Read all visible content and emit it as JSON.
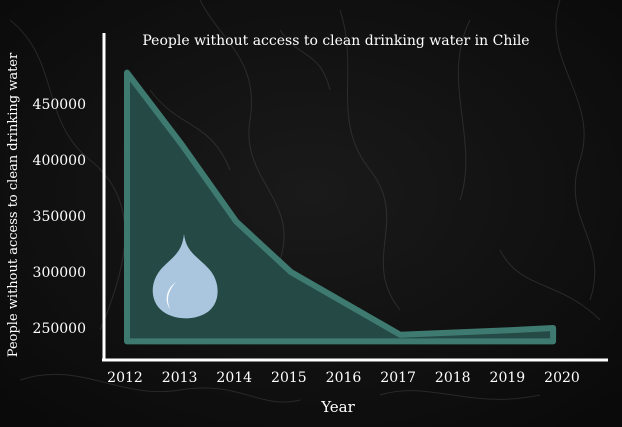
{
  "chart_data": {
    "type": "area",
    "title": "People without access to clean drinking water in Chile",
    "xlabel": "Year",
    "ylabel": "People without access to clean drinking water",
    "x": [
      2012,
      2013,
      2014,
      2015,
      2016,
      2017,
      2018,
      2019,
      2020
    ],
    "x_tick_labels": [
      "2012",
      "2013",
      "2014",
      "2015",
      "2016",
      "2017",
      "2018",
      "2019",
      "2020"
    ],
    "y_ticks": [
      250000,
      300000,
      350000,
      400000,
      450000
    ],
    "y_tick_labels": [
      "250000",
      "300000",
      "350000",
      "400000",
      "450000"
    ],
    "xlim": [
      2012,
      2020
    ],
    "ylim": [
      225000,
      490000
    ],
    "series": [
      {
        "x": [
          2012,
          2013,
          2014,
          2015,
          2016,
          2017,
          2018,
          2019,
          2019.8
        ],
        "values": [
          478000,
          414000,
          345000,
          300000,
          272000,
          244000,
          246000,
          248000,
          250000
        ]
      }
    ],
    "baseline": 238000,
    "colors": {
      "background": "#111111",
      "fill": "#254a45",
      "stroke": "#3e7a70",
      "axis": "#ffffff",
      "text": "#ffffff",
      "drop": "#aac6df"
    },
    "decoration": "water-drop-icon"
  }
}
